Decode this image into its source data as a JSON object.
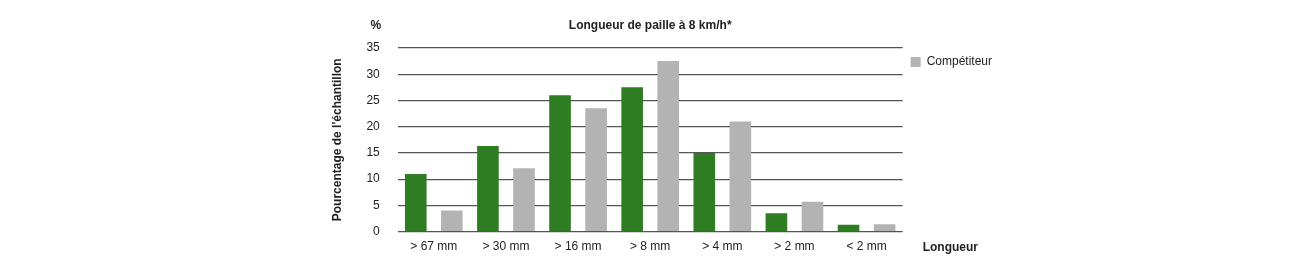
{
  "chart_data": {
    "type": "bar",
    "title": "Longueur de paille à 8 km/h*",
    "xlabel": "Longueur",
    "ylabel": "Pourcentage de l'échantillon",
    "annotations": [
      "%"
    ],
    "categories": [
      "> 67 mm",
      "> 30 mm",
      "> 16 mm",
      "> 8 mm",
      "> 4 mm",
      "> 2 mm",
      "< 2 mm"
    ],
    "series": [
      {
        "color": "#2f7d22",
        "values": [
          11,
          16.3,
          26,
          27.5,
          15,
          3.5,
          1.3
        ]
      },
      {
        "name": "Compétiteur",
        "color": "#b3b3b3",
        "values": [
          4,
          12.1,
          23.5,
          32.5,
          21,
          5.7,
          1.4
        ]
      }
    ],
    "ylim": [
      0,
      35
    ],
    "yticks": [
      0,
      5,
      10,
      15,
      20,
      25,
      30,
      35
    ],
    "grid": "y",
    "legend": "top right"
  }
}
